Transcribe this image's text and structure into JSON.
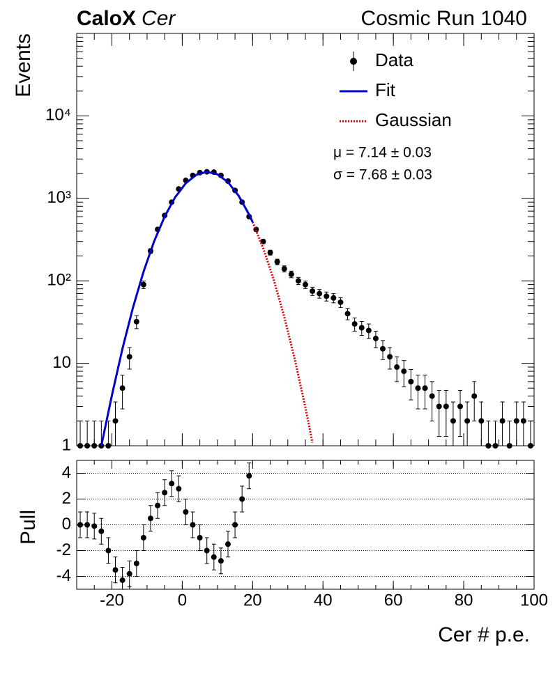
{
  "chart_data": [
    {
      "type": "scatter",
      "title": "CaloX",
      "title_italic": "Cer",
      "run_label": "Cosmic Run 1040",
      "ylabel": "Events",
      "log_y": true,
      "ylim": [
        1,
        100000
      ],
      "yticks": [
        1,
        10,
        {
          "value": 100,
          "label": "10²"
        },
        {
          "value": 1000,
          "label": "10³"
        },
        {
          "value": 10000,
          "label": "10⁴"
        }
      ],
      "legend": "top-right",
      "annotations": [
        "μ = 7.14 ± 0.03",
        "σ = 7.68 ± 0.03"
      ],
      "series": [
        {
          "name": "Data",
          "color": "#000000",
          "style": "points",
          "x": [
            -29,
            -27,
            -25,
            -23,
            -21,
            -19,
            -17,
            -15,
            -13,
            -11,
            -9,
            -7,
            -5,
            -3,
            -1,
            1,
            3,
            5,
            7,
            9,
            11,
            13,
            15,
            17,
            19,
            21,
            23,
            25,
            27,
            29,
            31,
            33,
            35,
            37,
            39,
            41,
            43,
            45,
            47,
            49,
            51,
            53,
            55,
            57,
            59,
            61,
            63,
            65,
            67,
            69,
            71,
            73,
            75,
            77,
            79,
            81,
            83,
            85,
            87,
            89,
            91,
            93,
            95,
            97,
            99
          ],
          "values": [
            1,
            1,
            1,
            1,
            1,
            2,
            5,
            12,
            32,
            90,
            230,
            420,
            620,
            900,
            1300,
            1650,
            1900,
            2050,
            2100,
            2080,
            1900,
            1620,
            1250,
            900,
            600,
            420,
            300,
            220,
            170,
            140,
            120,
            100,
            90,
            75,
            70,
            65,
            62,
            55,
            40,
            30,
            27,
            25,
            20,
            15,
            12,
            9,
            8,
            6,
            5,
            5,
            4,
            3,
            3,
            2,
            3,
            2,
            4,
            2,
            1,
            1,
            2,
            1,
            2,
            2,
            1
          ],
          "errors": [
            1,
            1,
            1,
            1,
            1,
            1.4,
            2.2,
            3.5,
            5.7,
            9.5,
            15.2,
            20.5,
            24.9,
            30,
            36.1,
            40.6,
            43.6,
            45.3,
            45.8,
            45.6,
            43.6,
            40.2,
            35.4,
            30,
            24.5,
            20.5,
            17.3,
            14.8,
            13,
            11.8,
            11,
            10,
            9.5,
            8.7,
            8.4,
            8.1,
            7.9,
            7.4,
            6.3,
            5.5,
            5.2,
            5,
            4.5,
            3.9,
            3.5,
            3,
            2.8,
            2.4,
            2.2,
            2.2,
            2,
            1.7,
            1.7,
            1.4,
            1.7,
            1.4,
            2,
            1.4,
            1,
            1,
            1.4,
            1,
            1.4,
            1.4,
            1
          ]
        },
        {
          "name": "Fit",
          "color": "#0000cc",
          "style": "solid",
          "x": [
            -23,
            -20,
            -17,
            -14,
            -11,
            -8,
            -5,
            -2,
            1,
            4,
            7,
            10,
            13,
            16,
            19,
            20
          ],
          "values": [
            0.95,
            4.07,
            15,
            47.5,
            129,
            301,
            602,
            1034,
            1525,
            1932,
            2100,
            1959,
            1570,
            1079,
            637,
            517
          ]
        },
        {
          "name": "Gaussian",
          "color": "#dd0000",
          "style": "dotted",
          "x": [
            20,
            23,
            26,
            29,
            32,
            35,
            37
          ],
          "values": [
            517,
            249,
            103,
            36.6,
            11.1,
            2.91,
            1.09
          ]
        }
      ]
    },
    {
      "type": "scatter",
      "ylabel": "Pull",
      "xlabel": "Cer # p.e.",
      "color": "#000000",
      "grid": true,
      "xlim": [
        -30,
        100
      ],
      "xticks": [
        -20,
        0,
        20,
        40,
        60,
        80,
        100
      ],
      "ylim": [
        -5,
        5
      ],
      "yticks": [
        -4,
        -2,
        0,
        2,
        4
      ],
      "x": [
        -29,
        -27,
        -25,
        -23,
        -21,
        -19,
        -17,
        -15,
        -13,
        -11,
        -9,
        -7,
        -5,
        -3,
        -1,
        1,
        3,
        5,
        7,
        9,
        11,
        13,
        15,
        17,
        19
      ],
      "values": [
        0,
        0,
        -0.1,
        -0.5,
        -2,
        -3.5,
        -4.3,
        -3.8,
        -3,
        -1,
        0.5,
        1.5,
        2.5,
        3.2,
        2.8,
        1,
        0,
        -1,
        -2,
        -2.5,
        -2.8,
        -1.5,
        0,
        2,
        3.8
      ],
      "errors": [
        1,
        1,
        1,
        1,
        1,
        1,
        1,
        1,
        1,
        1,
        1,
        1,
        1,
        1,
        1,
        1,
        1,
        1,
        1,
        1,
        1,
        1,
        1,
        1,
        1
      ]
    }
  ]
}
